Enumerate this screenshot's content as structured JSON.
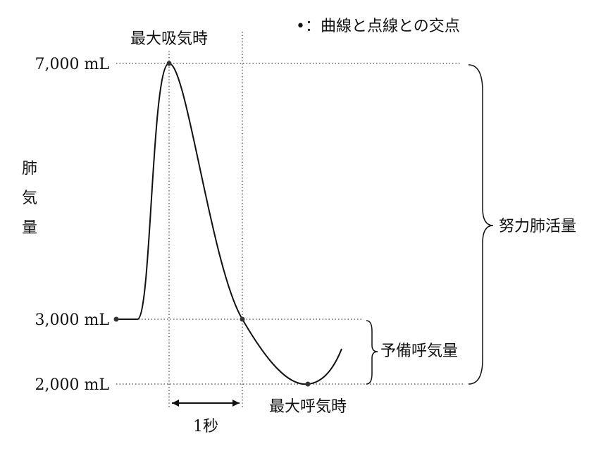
{
  "legend": "•：曲線と点線との交点",
  "y_labels": [
    "7,000 mL",
    "3,000 mL",
    "2,000 mL"
  ],
  "axis_label": [
    "肺",
    "気",
    "量"
  ],
  "annotations": {
    "max_inhale": "最大吸気時",
    "max_exhale": "最大呼気時",
    "one_second": "1秒",
    "reserve": "予備呼気量",
    "fvc": "努力肺活量"
  }
}
